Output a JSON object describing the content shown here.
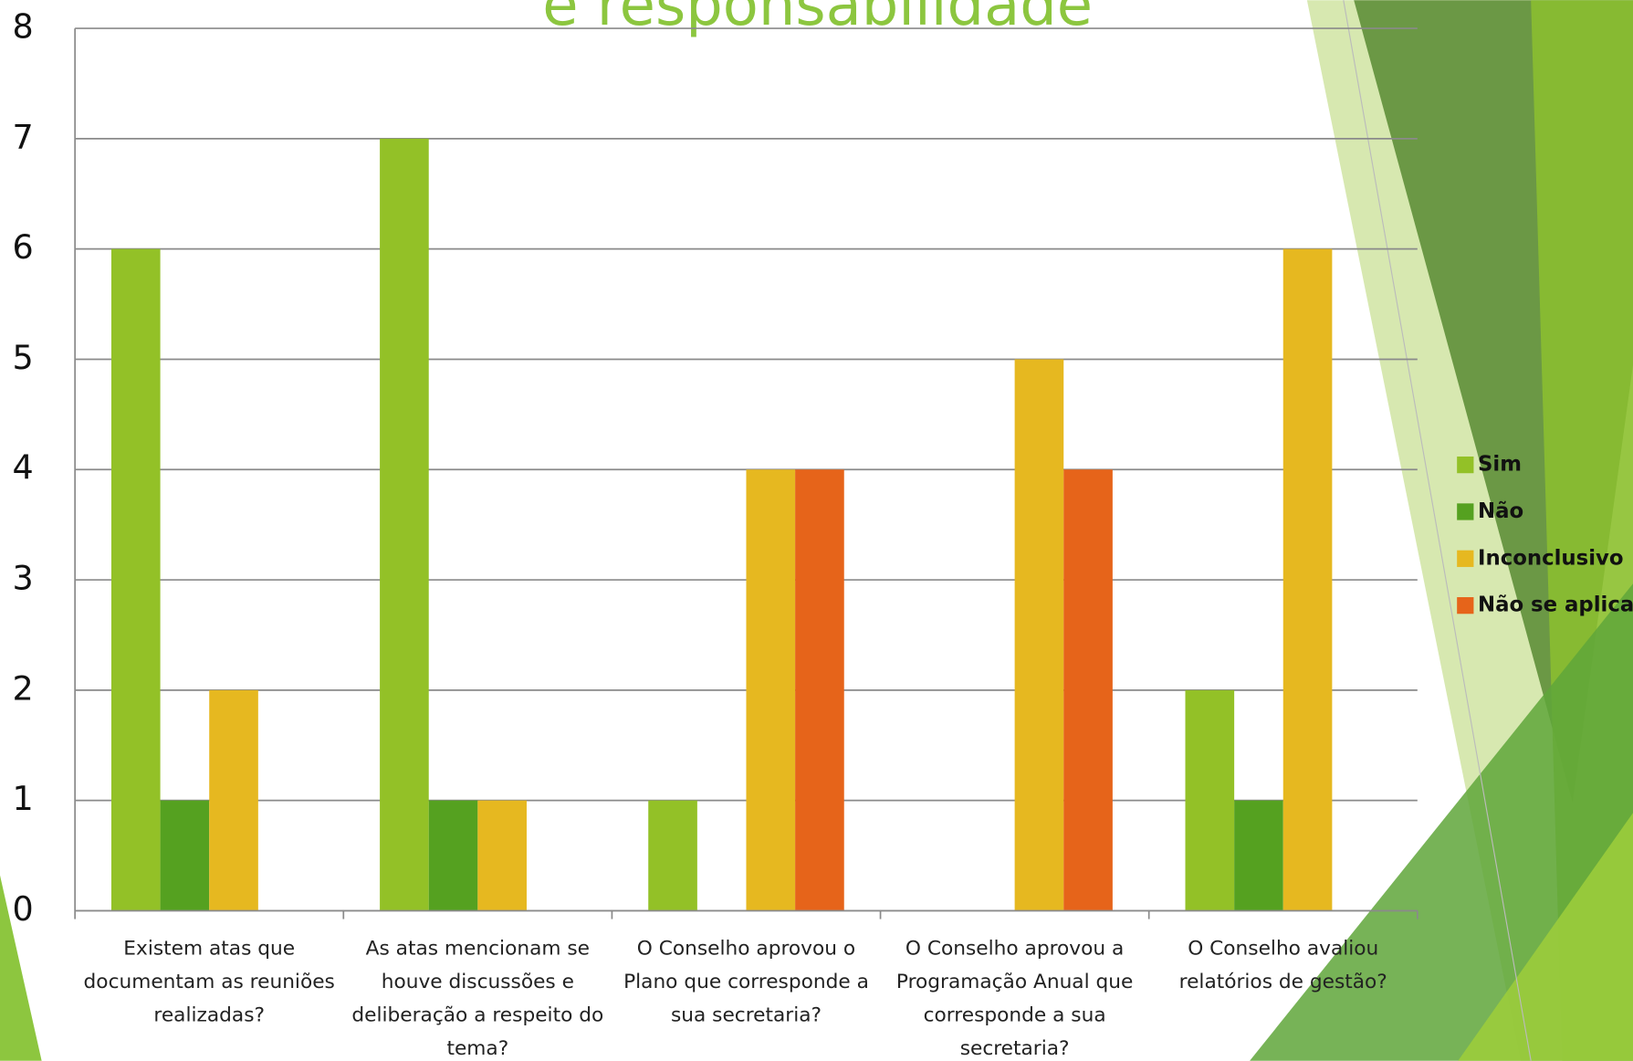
{
  "chart_data": {
    "type": "bar",
    "title": "e responsabilidade",
    "categories": [
      "Existem atas que documentam as reuniões realizadas?",
      "As atas mencionam se houve discussões e deliberação a respeito do tema?",
      "O Conselho aprovou o Plano que corresponde a sua secretaria?",
      "O Conselho aprovou a Programação Anual que corresponde a sua secretaria?",
      "O Conselho avaliou relatórios de gestão?"
    ],
    "series": [
      {
        "name": "Sim",
        "color": "#93c127",
        "values": [
          6,
          7,
          1,
          0,
          2
        ]
      },
      {
        "name": "Não",
        "color": "#55a120",
        "values": [
          1,
          1,
          0,
          0,
          1
        ]
      },
      {
        "name": "Inconclusivo",
        "color": "#e6b820",
        "values": [
          2,
          1,
          4,
          5,
          6
        ]
      },
      {
        "name": "Não se aplica",
        "color": "#e6641a",
        "values": [
          0,
          0,
          4,
          4,
          0
        ]
      }
    ],
    "ylim": [
      0,
      8
    ],
    "yticks": [
      0,
      1,
      2,
      3,
      4,
      5,
      6,
      7,
      8
    ],
    "grid": true,
    "legend": "right"
  }
}
